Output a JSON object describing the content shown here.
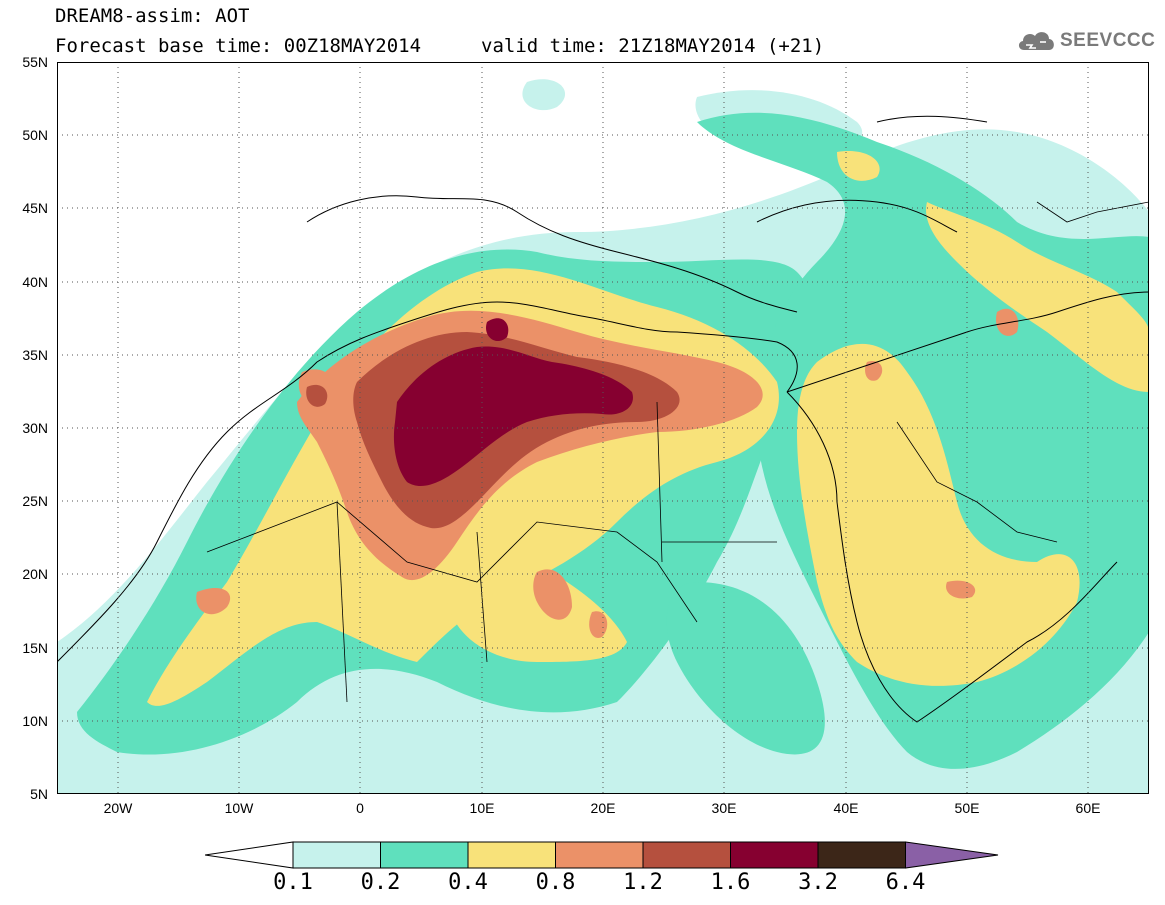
{
  "header": {
    "title": "DREAM8-assim: AOT",
    "base_time": "Forecast base time: 00Z18MAY2014",
    "valid_time": "valid time: 21Z18MAY2014 (+21)",
    "logo_text": "SEEVCCC",
    "logo_icon": "cloud-icon"
  },
  "map": {
    "lat_range": [
      5,
      55
    ],
    "lon_range": [
      -25,
      65
    ],
    "lat_labels": [
      "55N",
      "50N",
      "45N",
      "40N",
      "35N",
      "30N",
      "25N",
      "20N",
      "15N",
      "10N",
      "5N"
    ],
    "lon_labels": [
      "20W",
      "10W",
      "0",
      "10E",
      "20E",
      "30E",
      "40E",
      "50E",
      "60E"
    ],
    "gridlines": "dotted",
    "variable": "Aerosol Optical Thickness (dust)"
  },
  "colorbar": {
    "levels": [
      "0.1",
      "0.2",
      "0.4",
      "0.8",
      "1.2",
      "1.6",
      "3.2",
      "6.4"
    ],
    "colors": [
      "#ffffff",
      "#c6f2ec",
      "#5fe0bd",
      "#f8e27a",
      "#eb9168",
      "#b5503e",
      "#860030",
      "#3c2618",
      "#8a60a6"
    ]
  }
}
